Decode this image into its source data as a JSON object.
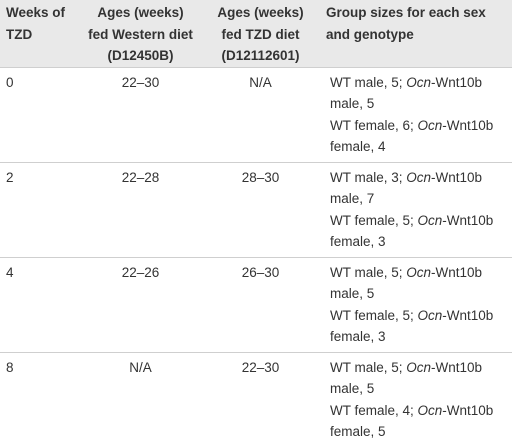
{
  "table": {
    "header": [
      "Weeks of TZD",
      "Ages (weeks) fed Western diet (D12450B)",
      "Ages (weeks) fed TZD diet (D12112601)",
      "Group sizes for each sex and genotype"
    ],
    "rows": [
      {
        "weeks": "0",
        "western": "22–30",
        "tzd": "N/A",
        "groups": [
          {
            "prefix": "WT male, 5; ",
            "italic": "Ocn",
            "suffix": "-Wnt10b male, 5"
          },
          {
            "prefix": "WT female, 6; ",
            "italic": "Ocn",
            "suffix": "-Wnt10b female, 4"
          }
        ]
      },
      {
        "weeks": "2",
        "western": "22–28",
        "tzd": "28–30",
        "groups": [
          {
            "prefix": "WT male, 3; ",
            "italic": "Ocn",
            "suffix": "-Wnt10b male, 7"
          },
          {
            "prefix": "WT female, 5; ",
            "italic": "Ocn",
            "suffix": "-Wnt10b female, 3"
          }
        ]
      },
      {
        "weeks": "4",
        "western": "22–26",
        "tzd": "26–30",
        "groups": [
          {
            "prefix": "WT male, 5; ",
            "italic": "Ocn",
            "suffix": "-Wnt10b male, 5"
          },
          {
            "prefix": "WT female, 5; ",
            "italic": "Ocn",
            "suffix": "-Wnt10b female, 3"
          }
        ]
      },
      {
        "weeks": "8",
        "western": "N/A",
        "tzd": "22–30",
        "groups": [
          {
            "prefix": "WT male, 5; ",
            "italic": "Ocn",
            "suffix": "-Wnt10b male, 5"
          },
          {
            "prefix": "WT female, 4; ",
            "italic": "Ocn",
            "suffix": "-Wnt10b female, 5"
          }
        ]
      }
    ]
  }
}
